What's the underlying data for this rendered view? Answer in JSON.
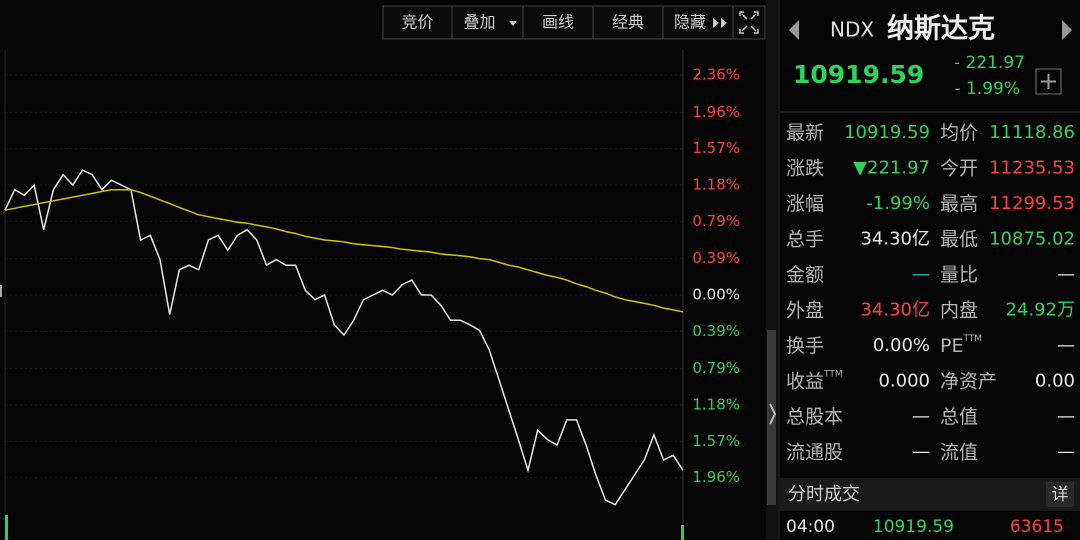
{
  "toolbar": {
    "buttons": [
      "竞价",
      "叠加",
      "画线",
      "经典",
      "隐藏"
    ]
  },
  "chart_data": {
    "type": "line",
    "series": [
      {
        "color": "#e8e8e8",
        "values": [
          0.91,
          1.13,
          1.07,
          1.18,
          0.7,
          1.13,
          1.29,
          1.18,
          1.34,
          1.29,
          1.13,
          1.23,
          1.18,
          1.13,
          0.59,
          0.64,
          0.38,
          -0.21,
          0.27,
          0.32,
          0.27,
          0.59,
          0.64,
          0.48,
          0.64,
          0.7,
          0.59,
          0.32,
          0.38,
          0.32,
          0.32,
          0.05,
          -0.05,
          0,
          -0.32,
          -0.43,
          -0.27,
          -0.05,
          0,
          0.05,
          0,
          0.11,
          0.16,
          0,
          0,
          -0.11,
          -0.27,
          -0.27,
          -0.32,
          -0.38,
          -0.59,
          -0.91,
          -1.23,
          -1.55,
          -1.88,
          -1.45,
          -1.55,
          -1.61,
          -1.34,
          -1.34,
          -1.61,
          -1.93,
          -2.2,
          -2.25,
          -2.09,
          -1.93,
          -1.77,
          -1.5,
          -1.77,
          -1.72,
          -1.88
        ]
      },
      {
        "color": "#d4c400",
        "values": [
          0.91,
          0.93,
          0.95,
          0.97,
          0.99,
          1.01,
          1.03,
          1.05,
          1.07,
          1.09,
          1.11,
          1.13,
          1.13,
          1.13,
          1.1,
          1.06,
          1.02,
          0.98,
          0.94,
          0.9,
          0.86,
          0.84,
          0.82,
          0.8,
          0.78,
          0.77,
          0.75,
          0.73,
          0.71,
          0.68,
          0.66,
          0.63,
          0.61,
          0.59,
          0.58,
          0.57,
          0.55,
          0.54,
          0.53,
          0.52,
          0.51,
          0.49,
          0.48,
          0.47,
          0.46,
          0.44,
          0.43,
          0.42,
          0.41,
          0.39,
          0.38,
          0.35,
          0.32,
          0.3,
          0.27,
          0.24,
          0.21,
          0.19,
          0.16,
          0.12,
          0.09,
          0.05,
          0.02,
          -0.02,
          -0.05,
          -0.07,
          -0.09,
          -0.11,
          -0.14,
          -0.16,
          -0.18
        ]
      }
    ],
    "ylim": [
      -2.36,
      2.36
    ],
    "yticks": [
      {
        "value": 2.36,
        "label": "2.36%"
      },
      {
        "value": 1.96,
        "label": "1.96%"
      },
      {
        "value": 1.57,
        "label": "1.57%"
      },
      {
        "value": 1.18,
        "label": "1.18%"
      },
      {
        "value": 0.79,
        "label": "0.79%"
      },
      {
        "value": 0.39,
        "label": "0.39%"
      },
      {
        "value": 0,
        "label": "0.00%"
      },
      {
        "value": -0.39,
        "label": "0.39%"
      },
      {
        "value": -0.79,
        "label": "0.79%"
      },
      {
        "value": -1.18,
        "label": "1.18%"
      },
      {
        "value": -1.57,
        "label": "1.57%"
      },
      {
        "value": -1.96,
        "label": "1.96%"
      }
    ],
    "up_color": "#ff4040",
    "down_color": "#2ed35a",
    "flat_color": "#e6e6e6",
    "grid": true
  },
  "quote": {
    "code": "NDX",
    "name": "纳斯达克",
    "price": "10919.59",
    "change": "- 221.97",
    "change_pct": "- 1.99%",
    "color": "#2ed35a"
  },
  "stats": {
    "rows": [
      [
        {
          "label": "最新",
          "value": "10919.59",
          "color": "#2ed35a"
        },
        {
          "label": "均价",
          "value": "11118.86",
          "color": "#2ed35a"
        }
      ],
      [
        {
          "label": "涨跌",
          "value": "▼221.97",
          "color": "#2ed35a"
        },
        {
          "label": "今开",
          "value": "11235.53",
          "color": "#ff4040"
        }
      ],
      [
        {
          "label": "涨幅",
          "value": "-1.99%",
          "color": "#2ed35a"
        },
        {
          "label": "最高",
          "value": "11299.53",
          "color": "#ff4040"
        }
      ],
      [
        {
          "label": "总手",
          "value": "34.30亿",
          "color": "#e6e6e6"
        },
        {
          "label": "最低",
          "value": "10875.02",
          "color": "#2ed35a"
        }
      ],
      [
        {
          "label": "金额",
          "value": "—",
          "color": "#22c8d8"
        },
        {
          "label": "量比",
          "value": "—",
          "color": "#e6e6e6"
        }
      ],
      [
        {
          "label": "外盘",
          "value": "34.30亿",
          "color": "#ff4040"
        },
        {
          "label": "内盘",
          "value": "24.92万",
          "color": "#2ed35a"
        }
      ],
      [
        {
          "label": "换手",
          "value": "0.00%",
          "color": "#e6e6e6"
        },
        {
          "label": "PE",
          "sup": "TTM",
          "value": "—",
          "color": "#e6e6e6"
        }
      ],
      [
        {
          "label": "收益",
          "sup": "TTM",
          "value": "0.000",
          "color": "#e6e6e6"
        },
        {
          "label": "净资产",
          "value": "0.00",
          "color": "#e6e6e6"
        }
      ],
      [
        {
          "label": "总股本",
          "value": "—",
          "color": "#e6e6e6"
        },
        {
          "label": "总值",
          "value": "—",
          "color": "#e6e6e6"
        }
      ],
      [
        {
          "label": "流通股",
          "value": "—",
          "color": "#e6e6e6"
        },
        {
          "label": "流值",
          "value": "—",
          "color": "#e6e6e6"
        }
      ]
    ]
  },
  "trades": {
    "title": "分时成交",
    "detail": "详",
    "rows": [
      {
        "time": "04:00",
        "price": "10919.59",
        "volume": "63615"
      }
    ]
  }
}
